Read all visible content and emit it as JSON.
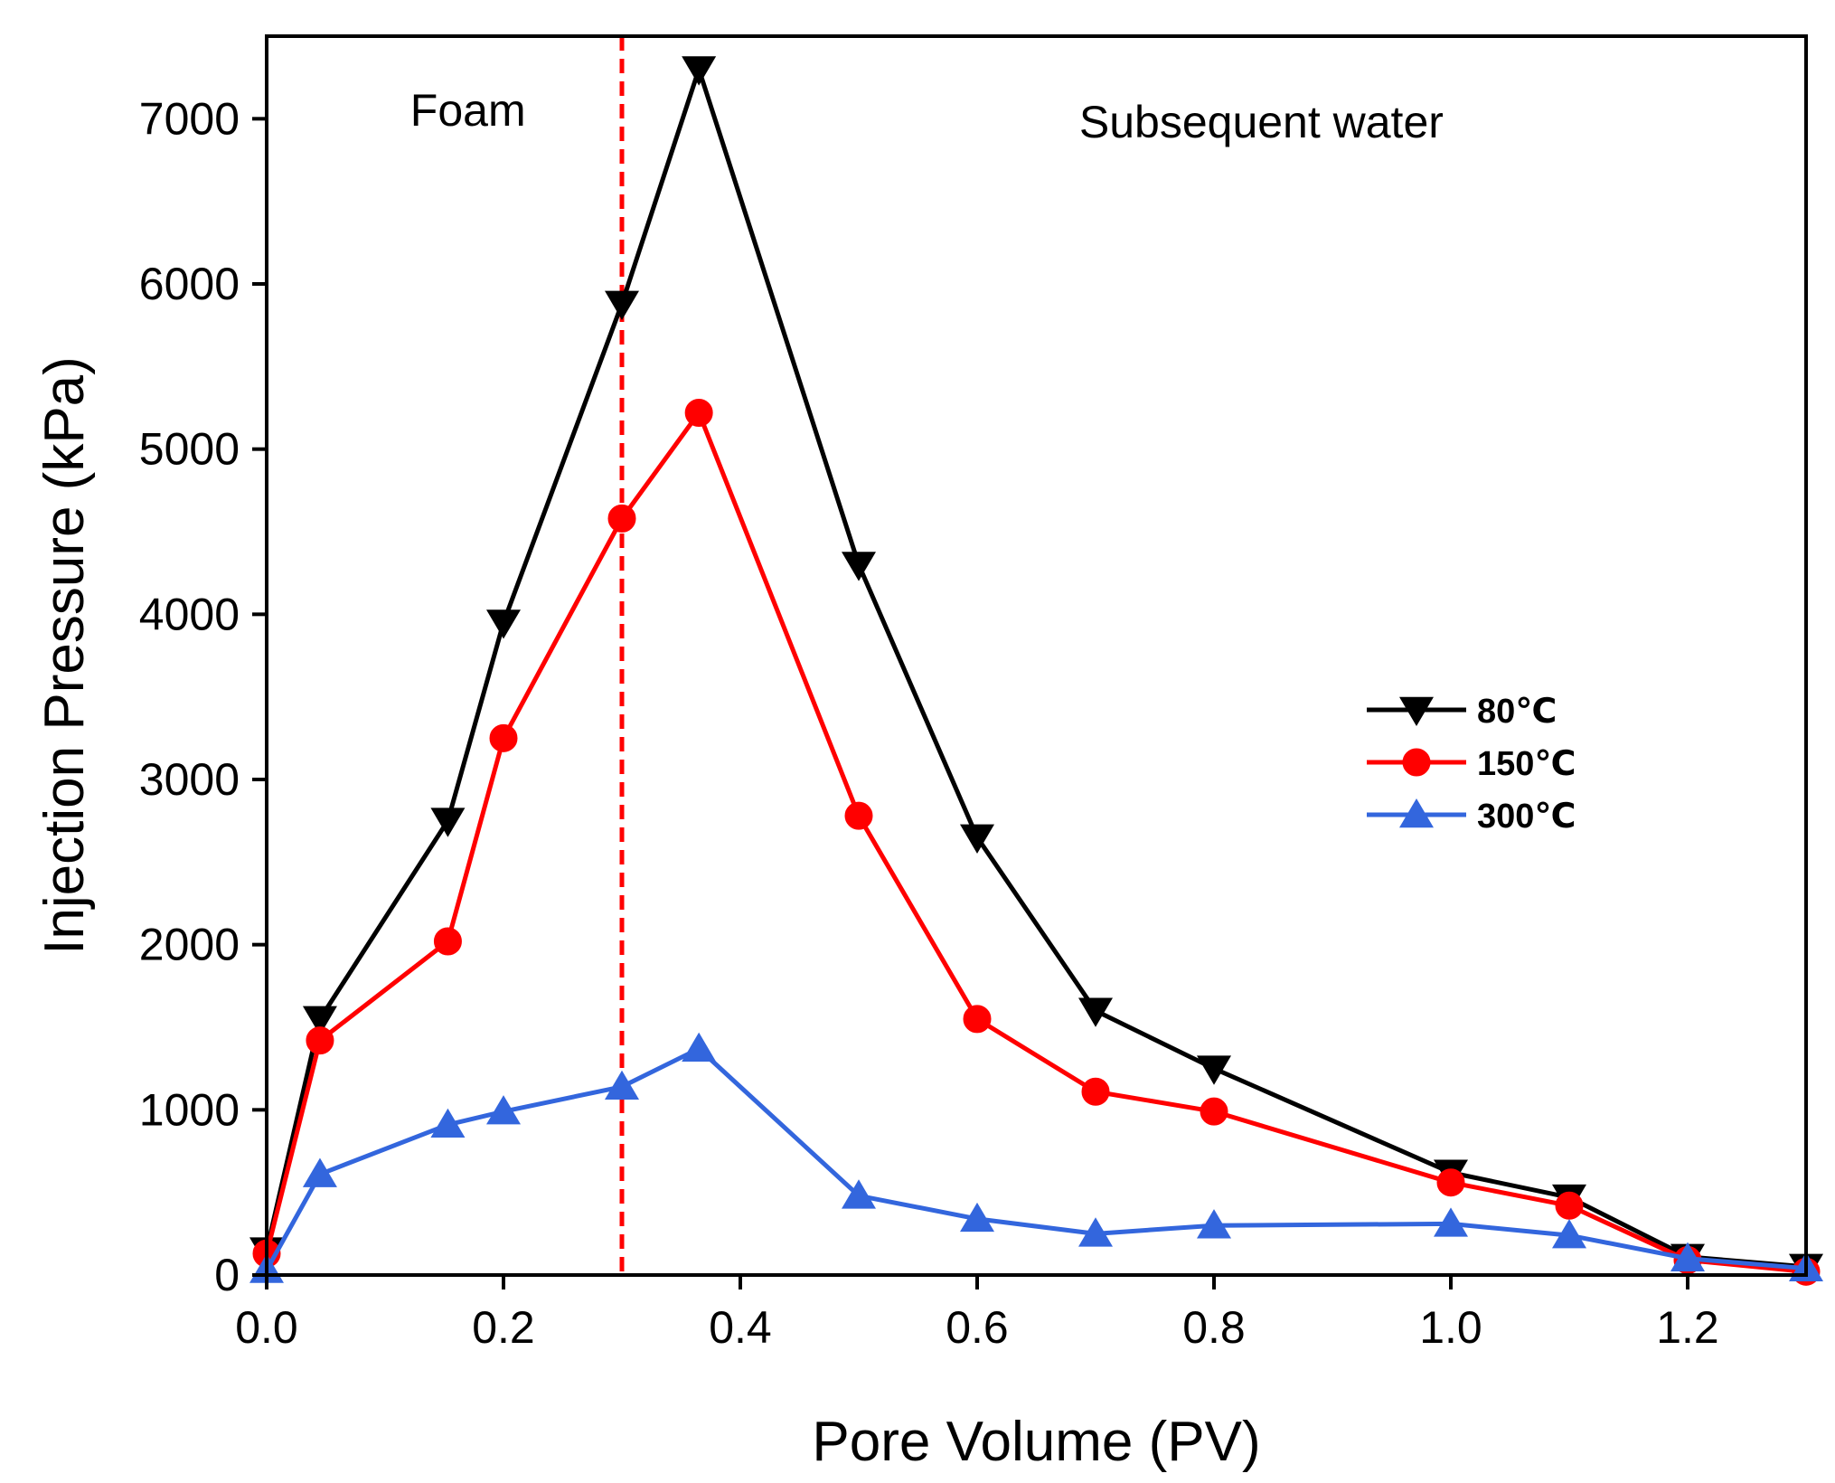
{
  "chart_data": {
    "type": "line",
    "title": "",
    "xlabel": "Pore Volume (PV)",
    "ylabel": "Injection Pressure (kPa)",
    "xlim": [
      0.0,
      1.3
    ],
    "ylim": [
      0,
      7500
    ],
    "xticks": [
      0.0,
      0.2,
      0.4,
      0.6,
      0.8,
      1.0,
      1.2
    ],
    "xtick_labels": [
      "0.0",
      "0.2",
      "0.4",
      "0.6",
      "0.8",
      "1.0",
      "1.2"
    ],
    "yticks": [
      0,
      1000,
      2000,
      3000,
      4000,
      5000,
      6000,
      7000
    ],
    "ytick_labels": [
      "0",
      "1000",
      "2000",
      "3000",
      "4000",
      "5000",
      "6000",
      "7000"
    ],
    "grid": false,
    "legend_position": "right-middle",
    "annotations": [
      {
        "text": "Foam",
        "x": 0.17,
        "y": 7050
      },
      {
        "text": "Subsequent water",
        "x": 0.84,
        "y": 6980
      }
    ],
    "vline": {
      "x": 0.3,
      "color": "#ff0000",
      "style": "dashed"
    },
    "series": [
      {
        "name": "80℃",
        "color": "#000000",
        "marker": "triangle-down",
        "x": [
          0.0,
          0.045,
          0.153,
          0.2,
          0.3,
          0.365,
          0.5,
          0.6,
          0.7,
          0.8,
          1.0,
          1.1,
          1.2,
          1.3
        ],
        "y": [
          150,
          1550,
          2750,
          3950,
          5880,
          7300,
          4300,
          2650,
          1600,
          1250,
          620,
          470,
          110,
          50
        ]
      },
      {
        "name": "150℃",
        "color": "#ff0000",
        "marker": "circle",
        "x": [
          0.0,
          0.045,
          0.153,
          0.2,
          0.3,
          0.365,
          0.5,
          0.6,
          0.7,
          0.8,
          1.0,
          1.1,
          1.2,
          1.3
        ],
        "y": [
          130,
          1420,
          2020,
          3250,
          4580,
          5220,
          2780,
          1550,
          1110,
          990,
          560,
          420,
          90,
          20
        ]
      },
      {
        "name": "300℃",
        "color": "#3366dd",
        "marker": "triangle-up",
        "x": [
          0.0,
          0.045,
          0.153,
          0.2,
          0.3,
          0.365,
          0.5,
          0.6,
          0.7,
          0.8,
          1.0,
          1.1,
          1.2,
          1.3
        ],
        "y": [
          30,
          610,
          910,
          990,
          1140,
          1370,
          480,
          340,
          250,
          300,
          310,
          240,
          100,
          40
        ]
      }
    ]
  }
}
